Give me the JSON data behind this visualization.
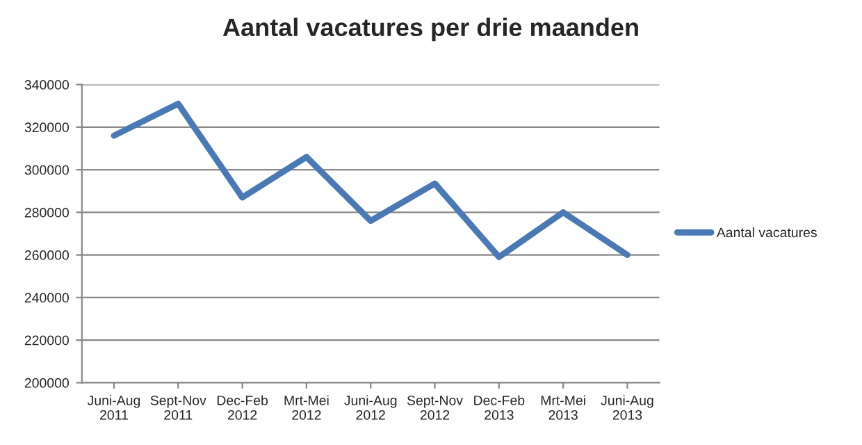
{
  "chart_data": {
    "type": "line",
    "title": "Aantal vacatures per drie maanden",
    "categories": [
      "Juni-Aug\n2011",
      "Sept-Nov\n2011",
      "Dec-Feb\n2012",
      "Mrt-Mei\n2012",
      "Juni-Aug\n2012",
      "Sept-Nov\n2012",
      "Dec-Feb\n2013",
      "Mrt-Mei\n2013",
      "Juni-Aug\n2013"
    ],
    "series": [
      {
        "name": "Aantal vacatures",
        "color": "#4a7ab5",
        "values": [
          316000,
          331000,
          287000,
          306000,
          276000,
          293500,
          259000,
          280000,
          260000
        ]
      }
    ],
    "ylim": [
      200000,
      340000
    ],
    "yticks": [
      200000,
      220000,
      240000,
      260000,
      280000,
      300000,
      320000,
      340000
    ],
    "grid": "y",
    "legend": "right",
    "marker": "none",
    "line_style": "solid"
  }
}
